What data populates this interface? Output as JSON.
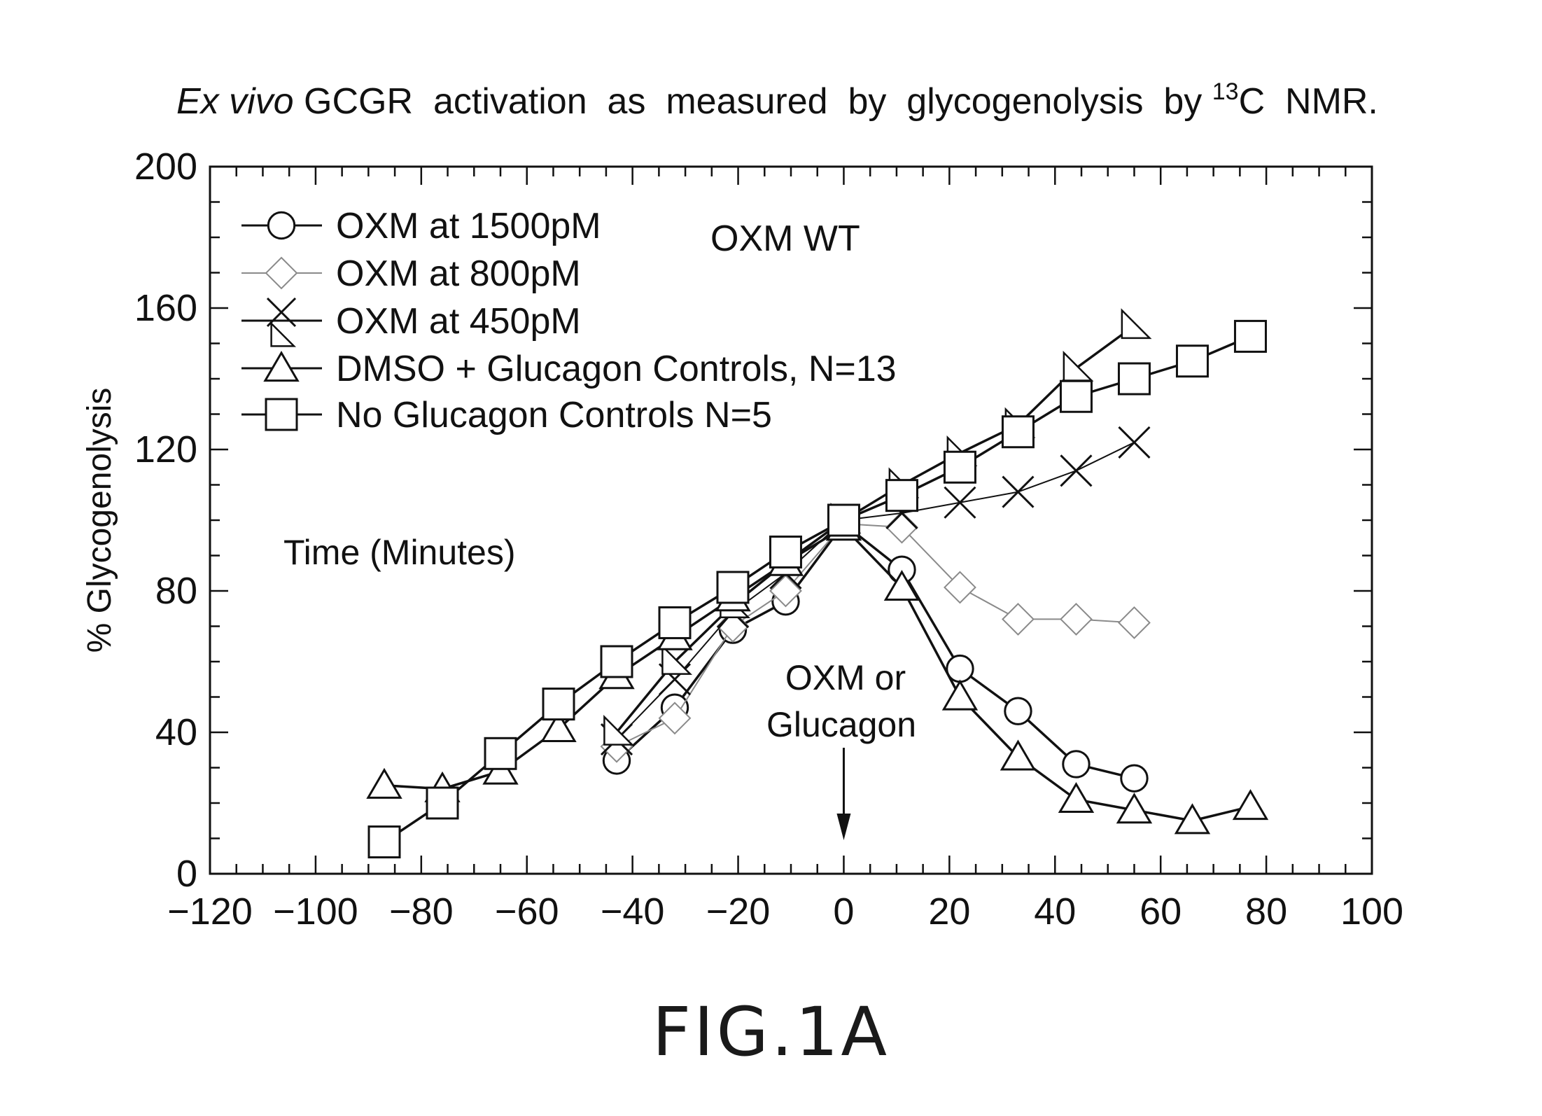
{
  "figure_label": "FIG.1A",
  "chart_data": {
    "type": "line",
    "title_parts": {
      "italic": "Ex vivo",
      "main": " GCGR  activation  as  measured  by  glycogenolysis  by ",
      "superscript": "13",
      "tail": "C  NMR."
    },
    "xlabel": "Time (Minutes)",
    "ylabel": "% Glycogenolysis",
    "xlim": [
      -120,
      100
    ],
    "ylim": [
      0,
      200
    ],
    "xticks": [
      -120,
      -100,
      -80,
      -60,
      -40,
      -20,
      0,
      20,
      40,
      60,
      80,
      100
    ],
    "yticks": [
      0,
      40,
      80,
      120,
      160
    ],
    "y_top_label": "200",
    "grid": false,
    "legend_position": "top-left",
    "annotations": {
      "panel_label": "OXM WT",
      "arrow_label_line1": "OXM or",
      "arrow_label_line2": "Glucagon",
      "arrow_x": 0
    },
    "series": [
      {
        "name": "OXM at 1500pM",
        "marker": "circle",
        "color": "#111111",
        "x": [
          -43,
          -32,
          -21,
          -11,
          0,
          11,
          22,
          33,
          44,
          55
        ],
        "y": [
          32,
          47,
          69,
          77,
          99,
          86,
          58,
          46,
          31,
          27
        ]
      },
      {
        "name": "OXM at 800pM",
        "marker": "diamond",
        "color": "#8a8a8a",
        "x": [
          -43,
          -32,
          -21,
          -11,
          0,
          11,
          22,
          33,
          44,
          55
        ],
        "y": [
          36,
          44,
          70,
          80,
          99,
          98,
          81,
          72,
          72,
          71
        ]
      },
      {
        "name": "OXM at 450pM",
        "marker": "cross",
        "color": "#111111",
        "x": [
          -43,
          -32,
          -21,
          -11,
          0,
          11,
          22,
          33,
          44,
          55
        ],
        "y": [
          38,
          55,
          74,
          85,
          100,
          102,
          105,
          108,
          114,
          122
        ]
      },
      {
        "name": "OXM at 450pM",
        "marker": "right-triangle",
        "color": "#111111",
        "x": [
          -43,
          -32,
          -21,
          -11,
          0,
          11,
          22,
          33,
          44,
          55
        ],
        "y": [
          40,
          60,
          76,
          88,
          100,
          110,
          119,
          127,
          143,
          155
        ]
      },
      {
        "name": "DMSO + Glucagon Controls, N=13",
        "marker": "triangle",
        "color": "#111111",
        "x": [
          -87,
          -76,
          -65,
          -54,
          -43,
          -32,
          -21,
          -11,
          0,
          11,
          22,
          33,
          44,
          55,
          66,
          77
        ],
        "y": [
          25,
          24,
          29,
          41,
          56,
          67,
          78,
          88,
          98,
          81,
          50,
          33,
          21,
          18,
          15,
          19
        ]
      },
      {
        "name": "No Glucagon Controls N=5",
        "marker": "square",
        "color": "#111111",
        "x": [
          -87,
          -76,
          -65,
          -54,
          -43,
          -32,
          -21,
          -11,
          0,
          11,
          22,
          33,
          44,
          55,
          66,
          77
        ],
        "y": [
          9,
          20,
          34,
          48,
          60,
          71,
          81,
          91,
          100,
          107,
          115,
          125,
          135,
          140,
          145,
          152
        ]
      }
    ],
    "legend": [
      {
        "label": "OXM at 1500pM",
        "marker": "circle",
        "color": "#111111"
      },
      {
        "label": "OXM at 800pM",
        "marker": "diamond",
        "color": "#8a8a8a"
      },
      {
        "label": "OXM at 450pM",
        "marker": "cross-triangle",
        "color": "#111111"
      },
      {
        "label": "DMSO + Glucagon Controls, N=13",
        "marker": "triangle",
        "color": "#111111"
      },
      {
        "label": "No Glucagon Controls N=5",
        "marker": "square",
        "color": "#111111"
      }
    ]
  }
}
